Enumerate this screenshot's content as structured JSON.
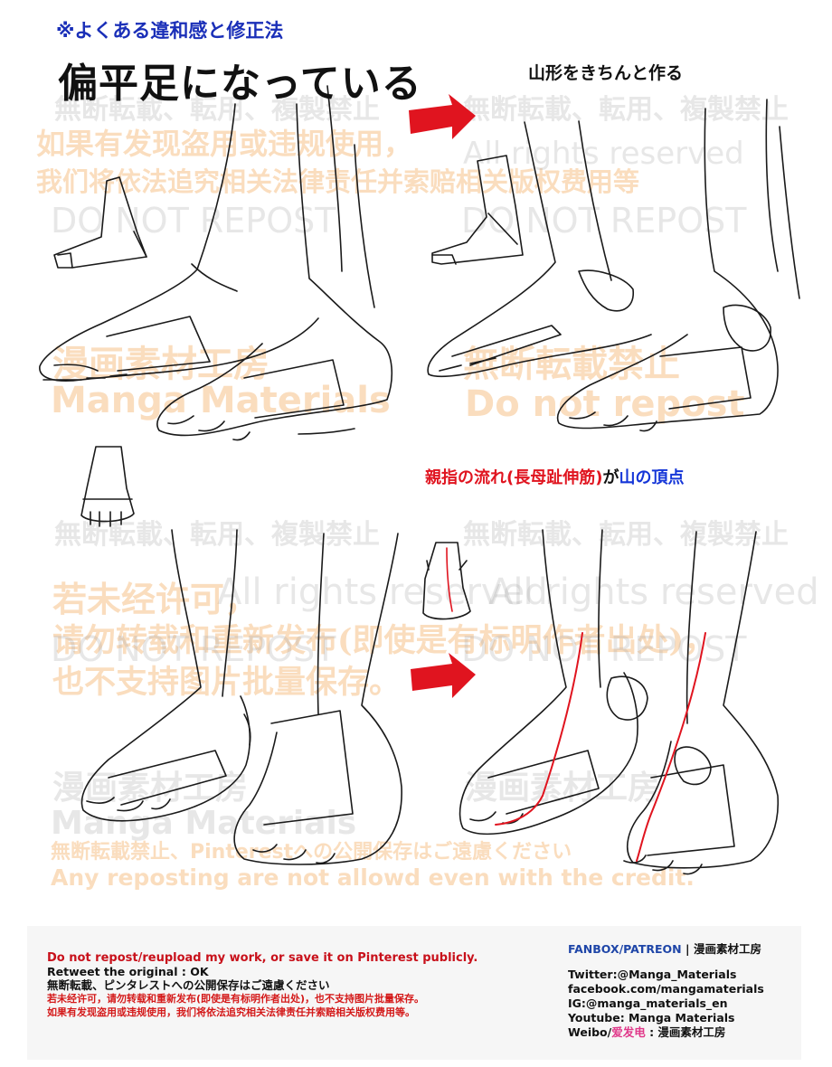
{
  "header": {
    "subtitle": "※よくある違和感と修正法",
    "title": "偏平足になっている",
    "right_title": "山形をきちんと作る"
  },
  "annotation": {
    "part1": "親指の流れ",
    "part2": "(長母趾伸筋)",
    "part3": "が",
    "part4": "山の頂点"
  },
  "watermarks": {
    "no_repost_jp": "無断転載、転用、複製禁止",
    "cn_line1": "如果有发现盗用或违规使用，",
    "cn_line2": "我们将依法追究相关法律责任并索赔相关版权费用等",
    "do_not_repost": "DO NOT REPOST",
    "studio_cn": "漫画素材工房",
    "studio_en": "Manga Materials",
    "all_rights": "All rights reserved",
    "no_repost_short": "無断転載禁止",
    "do_not_repost_lower": "Do not repost",
    "cn2_line1": "若未经许可，",
    "cn2_line2": "请勿转载和重新发布(即使是有标明作者出处)，",
    "cn2_line3": "也不支持图片批量保存。",
    "pinterest_jp": "無断転載禁止、Pinterestへの公開保存はご遠慮ください",
    "any_reposting": "Any reposting are not allowd even with the credit."
  },
  "footer": {
    "notice_en": "Do not repost/reupload my work, or save it on Pinterest publicly.",
    "retweet": "Retweet the original : OK",
    "notice_jp": "無断転載、ピンタレストへの公開保存はご遠慮ください",
    "notice_cn1": "若未经许可，请勿转载和重新发布(即使是有标明作者出处)，也不支持图片批量保存。",
    "notice_cn2": "如果有发现盗用或违规使用，我们将依法追究相关法律责任并索赔相关版权费用等。",
    "fanbox": "FANBOX/PATREON",
    "sep": " | ",
    "fanbox_name": "漫画素材工房",
    "twitter": "Twitter:@Manga_Materials",
    "facebook": "facebook.com/mangamaterials",
    "ig": "IG:@manga_materials_en",
    "youtube": "Youtube: Manga Materials",
    "weibo_prefix": "Weibo/",
    "weibo_pink": "爱发电",
    "weibo_suffix": " : 漫画素材工房"
  },
  "colors": {
    "arrow_red": "#e0141f",
    "title_blue": "#1a2fb8",
    "watermark": "#f5b46e"
  }
}
